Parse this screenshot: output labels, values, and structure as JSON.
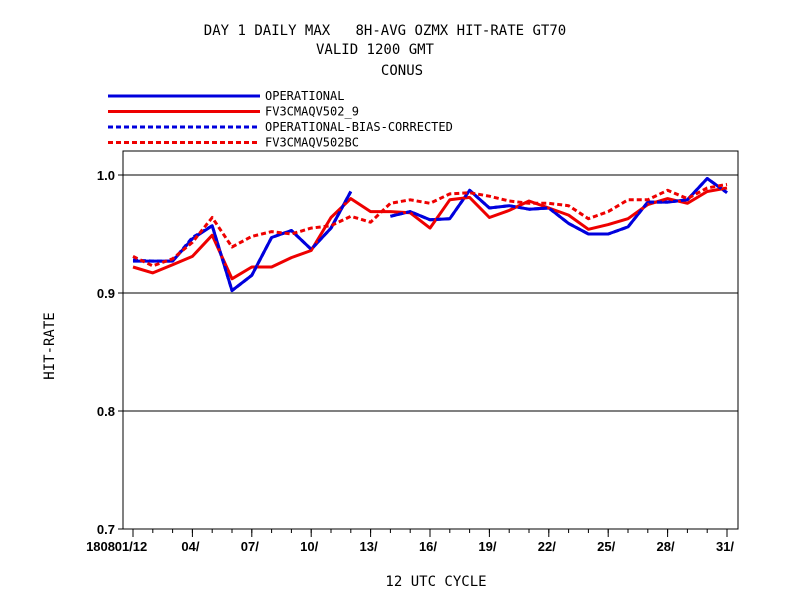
{
  "chart_data": {
    "type": "line",
    "title": [
      "DAY 1 DAILY MAX   8H-AVG OZMX HIT-RATE GT70",
      "VALID 1200 GMT",
      "CONUS"
    ],
    "xlabel": "12 UTC CYCLE",
    "ylabel": "HIT-RATE",
    "ylim": [
      0.7,
      1.02
    ],
    "yticks": [
      0.7,
      0.8,
      0.9,
      1.0
    ],
    "ytick_labels": [
      "0.7",
      "0.8",
      "0.9",
      "1.0"
    ],
    "xticks": [
      1,
      4,
      7,
      10,
      13,
      16,
      19,
      22,
      25,
      28,
      31
    ],
    "xtick_labels": [
      "01/12",
      "04/",
      "07/",
      "10/",
      "13/",
      "16/",
      "19/",
      "22/",
      "25/",
      "28/",
      "31/"
    ],
    "xtick_prefix": "1808",
    "grid": "horizontal",
    "legend_position": "top-left",
    "x": [
      1,
      2,
      3,
      4,
      5,
      6,
      7,
      8,
      9,
      10,
      11,
      12,
      13,
      14,
      15,
      16,
      17,
      18,
      19,
      20,
      21,
      22,
      23,
      24,
      25,
      26,
      27,
      28,
      29,
      30,
      31
    ],
    "series": [
      {
        "name": "OPERATIONAL",
        "color": "#0000dd",
        "style": "solid",
        "values": [
          0.927,
          0.927,
          0.927,
          0.946,
          0.957,
          0.902,
          0.915,
          0.947,
          0.953,
          0.937,
          0.955,
          0.986,
          null,
          0.965,
          0.969,
          0.962,
          0.963,
          0.987,
          0.972,
          0.974,
          0.971,
          0.972,
          0.959,
          0.95,
          0.95,
          0.956,
          0.977,
          0.977,
          0.979,
          0.997,
          0.985
        ]
      },
      {
        "name": "FV3CMAQV502_9",
        "color": "#ee0000",
        "style": "solid",
        "values": [
          0.922,
          0.917,
          0.924,
          0.931,
          0.949,
          0.912,
          0.922,
          0.922,
          0.93,
          0.936,
          0.964,
          0.98,
          0.969,
          0.969,
          0.968,
          0.955,
          0.979,
          0.981,
          0.964,
          0.97,
          0.978,
          0.972,
          0.966,
          0.954,
          0.958,
          0.963,
          0.975,
          0.98,
          0.976,
          0.986,
          0.989
        ]
      },
      {
        "name": "OPERATIONAL-BIAS-CORRECTED",
        "color": "#0000dd",
        "style": "dashed",
        "values": [
          0.928,
          0.927,
          0.927,
          0.947,
          0.957,
          0.902,
          0.915,
          0.947,
          0.953,
          0.937,
          0.955,
          0.986,
          null,
          0.965,
          0.969,
          0.962,
          0.963,
          0.987,
          0.972,
          0.974,
          0.971,
          0.972,
          0.959,
          0.95,
          0.95,
          0.956,
          0.977,
          0.977,
          0.979,
          0.997,
          0.985
        ]
      },
      {
        "name": "FV3CMAQV502BC",
        "color": "#ee0000",
        "style": "dashed",
        "values": [
          0.931,
          0.923,
          0.929,
          0.943,
          0.964,
          0.939,
          0.948,
          0.952,
          0.95,
          0.955,
          0.957,
          0.965,
          0.96,
          0.976,
          0.979,
          0.976,
          0.984,
          0.985,
          0.982,
          0.978,
          0.976,
          0.976,
          0.974,
          0.963,
          0.969,
          0.979,
          0.979,
          0.987,
          0.98,
          0.989,
          0.992
        ]
      }
    ]
  }
}
